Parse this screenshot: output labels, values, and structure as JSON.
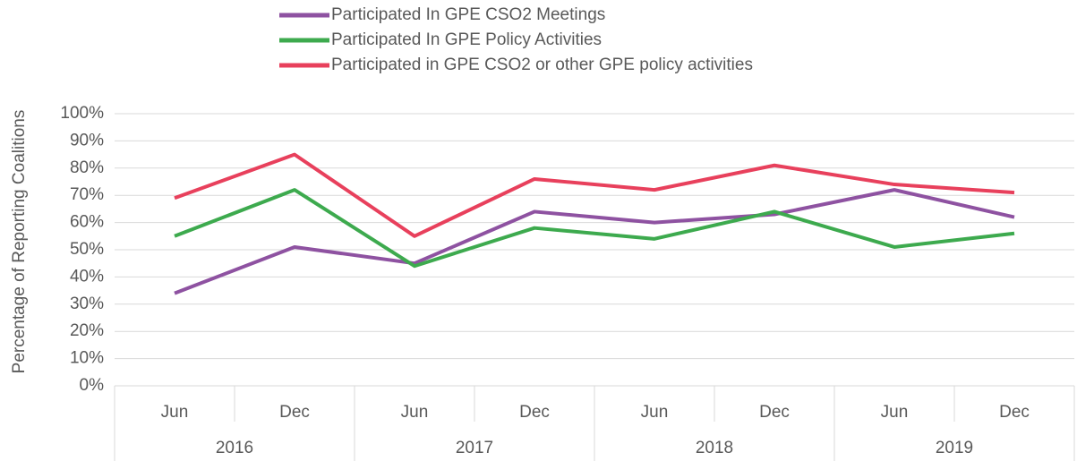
{
  "chart_data": {
    "type": "line",
    "y_label": "Percentage of Reporting Coalitions",
    "categories": [
      "Jun",
      "Dec",
      "Jun",
      "Dec",
      "Jun",
      "Dec",
      "Jun",
      "Dec"
    ],
    "groups": [
      {
        "label": "2016",
        "span": 2
      },
      {
        "label": "2017",
        "span": 2
      },
      {
        "label": "2018",
        "span": 2
      },
      {
        "label": "2019",
        "span": 2
      }
    ],
    "series": [
      {
        "name": "Participated In GPE CSO2 Meetings",
        "color": "#8e52a1",
        "values": [
          34,
          51,
          45,
          64,
          60,
          63,
          72,
          62
        ]
      },
      {
        "name": "Participated In GPE Policy Activities",
        "color": "#3daa4e",
        "values": [
          55,
          72,
          44,
          58,
          54,
          64,
          51,
          56
        ]
      },
      {
        "name": "Participated in GPE CSO2 or other GPE policy activities",
        "color": "#e8405c",
        "values": [
          69,
          85,
          55,
          76,
          72,
          81,
          74,
          71
        ]
      }
    ],
    "ylim": [
      0,
      100
    ],
    "yticks": [
      {
        "value": 0,
        "label": "0%"
      },
      {
        "value": 10,
        "label": "10%"
      },
      {
        "value": 20,
        "label": "20%"
      },
      {
        "value": 30,
        "label": "30%"
      },
      {
        "value": 40,
        "label": "40%"
      },
      {
        "value": 50,
        "label": "50%"
      },
      {
        "value": 60,
        "label": "60%"
      },
      {
        "value": 70,
        "label": "70%"
      },
      {
        "value": 80,
        "label": "80%"
      },
      {
        "value": 90,
        "label": "90%"
      },
      {
        "value": 100,
        "label": "100%"
      }
    ],
    "grid": true,
    "legend": "top"
  }
}
